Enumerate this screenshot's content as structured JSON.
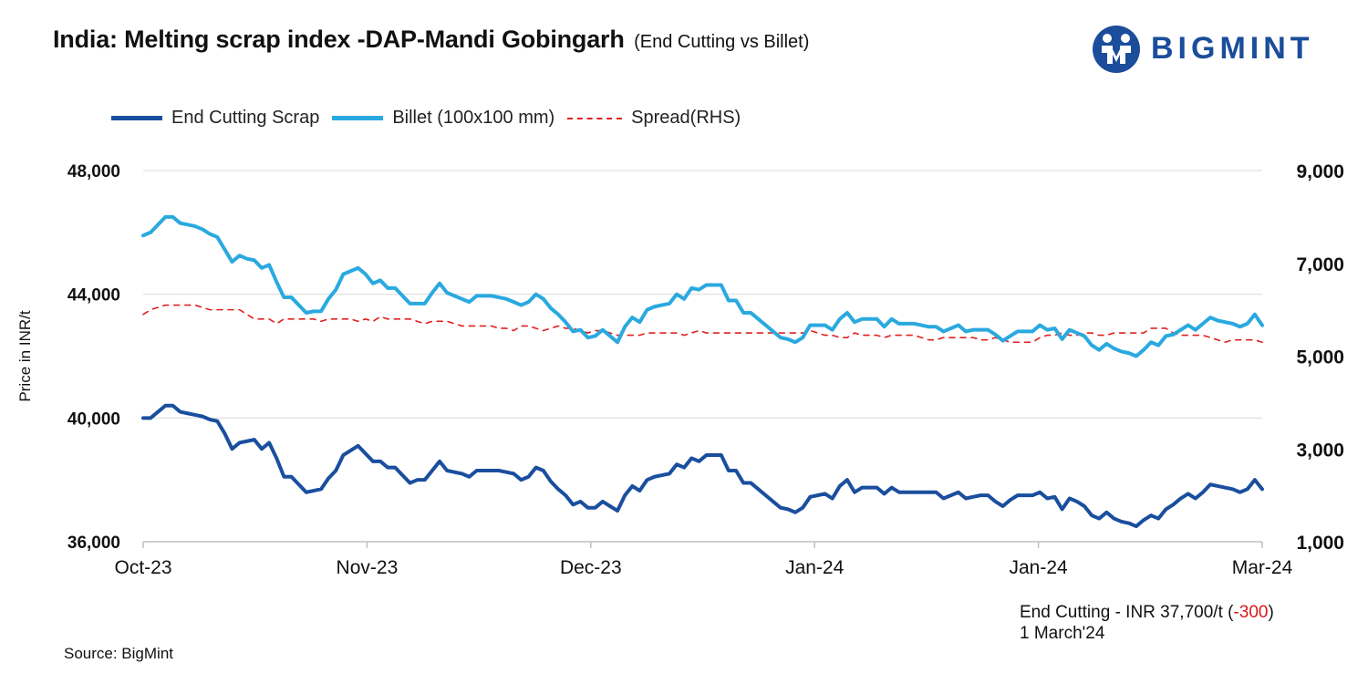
{
  "header": {
    "title": "India: Melting scrap index -DAP-Mandi Gobingarh",
    "subtitle": "(End Cutting vs Billet)"
  },
  "logo": {
    "text": "BIGMINT",
    "color": "#1b4d9b"
  },
  "note": {
    "prefix": "End Cutting - INR 37,700/t (",
    "change": "-300",
    "suffix": ")",
    "date": "1 March'24"
  },
  "source": "Source: BigMint",
  "colors": {
    "end_cutting": "#1a4e9e",
    "billet": "#2aa9df",
    "spread": "#e0201f",
    "grid": "#d9d9d9",
    "change_text": "#d7191c"
  },
  "chart_data": {
    "type": "line",
    "ylabel": "Price in INR/t",
    "ylim": [
      36000,
      48000
    ],
    "y_ticks": [
      "36,000",
      "40,000",
      "44,000",
      "48,000"
    ],
    "y2lim": [
      1000,
      9000
    ],
    "y2_ticks": [
      "1,000",
      "3,000",
      "5,000",
      "7,000",
      "9,000"
    ],
    "x_ticks": [
      "Oct-23",
      "Nov-23",
      "Dec-23",
      "Jan-24",
      "Jan-24",
      "Mar-24"
    ],
    "grid": true,
    "legend_position": "top-left",
    "series": [
      {
        "name": "End Cutting Scrap",
        "axis": "left",
        "values": [
          40000,
          40000,
          40200,
          40400,
          40400,
          40200,
          40150,
          40100,
          40050,
          39950,
          39900,
          39500,
          39000,
          39200,
          39250,
          39300,
          39000,
          39200,
          38700,
          38100,
          38100,
          37850,
          37600,
          37650,
          37700,
          38050,
          38300,
          38800,
          38950,
          39100,
          38850,
          38600,
          38600,
          38400,
          38400,
          38150,
          37900,
          38000,
          38000,
          38300,
          38600,
          38300,
          38250,
          38200,
          38100,
          38300,
          38300,
          38300,
          38300,
          38250,
          38200,
          38000,
          38100,
          38400,
          38300,
          37950,
          37700,
          37500,
          37200,
          37300,
          37100,
          37100,
          37300,
          37150,
          37000,
          37500,
          37800,
          37650,
          38000,
          38100,
          38150,
          38200,
          38500,
          38400,
          38700,
          38600,
          38800,
          38800,
          38800,
          38300,
          38300,
          37900,
          37900,
          37700,
          37500,
          37300,
          37100,
          37050,
          36950,
          37100,
          37450,
          37500,
          37550,
          37400,
          37800,
          38000,
          37600,
          37750,
          37750,
          37750,
          37550,
          37750,
          37600,
          37600,
          37600,
          37600,
          37600,
          37600,
          37400,
          37500,
          37600,
          37400,
          37450,
          37500,
          37500,
          37300,
          37150,
          37350,
          37500,
          37500,
          37500,
          37600,
          37400,
          37450,
          37050,
          37400,
          37300,
          37150,
          36850,
          36750,
          36950,
          36750,
          36650,
          36600,
          36500,
          36700,
          36850,
          36750,
          37050,
          37200,
          37400,
          37550,
          37400,
          37600,
          37850,
          37800,
          37750,
          37700,
          37600,
          37700,
          38000,
          37700
        ]
      },
      {
        "name": "Billet (100x100 mm)",
        "axis": "left",
        "values": [
          45900,
          46000,
          46250,
          46500,
          46500,
          46300,
          46250,
          46200,
          46100,
          45950,
          45850,
          45450,
          45050,
          45250,
          45150,
          45100,
          44850,
          44950,
          44400,
          43900,
          43900,
          43650,
          43400,
          43450,
          43450,
          43850,
          44150,
          44650,
          44750,
          44850,
          44650,
          44350,
          44450,
          44200,
          44200,
          43950,
          43700,
          43700,
          43700,
          44050,
          44350,
          44050,
          43950,
          43850,
          43750,
          43950,
          43950,
          43950,
          43900,
          43850,
          43750,
          43650,
          43750,
          44000,
          43850,
          43550,
          43350,
          43100,
          42800,
          42850,
          42600,
          42650,
          42850,
          42650,
          42450,
          42950,
          43250,
          43100,
          43500,
          43600,
          43650,
          43700,
          44000,
          43850,
          44200,
          44150,
          44300,
          44300,
          44300,
          43800,
          43800,
          43400,
          43400,
          43200,
          43000,
          42800,
          42600,
          42550,
          42450,
          42600,
          43000,
          43000,
          43000,
          42850,
          43200,
          43400,
          43100,
          43200,
          43200,
          43200,
          42950,
          43200,
          43050,
          43050,
          43050,
          43000,
          42950,
          42950,
          42800,
          42900,
          43000,
          42800,
          42850,
          42850,
          42850,
          42700,
          42500,
          42650,
          42800,
          42800,
          42800,
          43000,
          42850,
          42900,
          42550,
          42850,
          42750,
          42650,
          42350,
          42200,
          42400,
          42250,
          42150,
          42100,
          42000,
          42200,
          42450,
          42350,
          42650,
          42700,
          42850,
          43000,
          42850,
          43050,
          43250,
          43150,
          43100,
          43050,
          42950,
          43050,
          43350,
          43000
        ]
      },
      {
        "name": "Spread(RHS)",
        "axis": "right",
        "values": [
          5900,
          6000,
          6050,
          6100,
          6100,
          6100,
          6100,
          6100,
          6050,
          6000,
          6000,
          6000,
          6000,
          6000,
          5900,
          5800,
          5800,
          5800,
          5700,
          5800,
          5800,
          5800,
          5800,
          5800,
          5750,
          5800,
          5800,
          5800,
          5800,
          5750,
          5800,
          5750,
          5850,
          5800,
          5800,
          5800,
          5800,
          5750,
          5700,
          5750,
          5750,
          5750,
          5700,
          5650,
          5650,
          5650,
          5650,
          5650,
          5600,
          5600,
          5550,
          5650,
          5650,
          5600,
          5550,
          5600,
          5650,
          5600,
          5600,
          5550,
          5500,
          5550,
          5550,
          5500,
          5450,
          5450,
          5450,
          5450,
          5500,
          5500,
          5500,
          5500,
          5500,
          5450,
          5500,
          5550,
          5500,
          5500,
          5500,
          5500,
          5500,
          5500,
          5500,
          5500,
          5500,
          5500,
          5500,
          5500,
          5500,
          5500,
          5550,
          5500,
          5450,
          5450,
          5400,
          5400,
          5500,
          5450,
          5450,
          5450,
          5400,
          5450,
          5450,
          5450,
          5450,
          5400,
          5350,
          5350,
          5400,
          5400,
          5400,
          5400,
          5400,
          5350,
          5350,
          5400,
          5350,
          5300,
          5300,
          5300,
          5300,
          5400,
          5450,
          5450,
          5500,
          5450,
          5450,
          5500,
          5500,
          5450,
          5450,
          5500,
          5500,
          5500,
          5500,
          5500,
          5600,
          5600,
          5600,
          5500,
          5450,
          5450,
          5450,
          5450,
          5400,
          5350,
          5300,
          5350,
          5350,
          5350,
          5350,
          5300
        ]
      }
    ]
  }
}
